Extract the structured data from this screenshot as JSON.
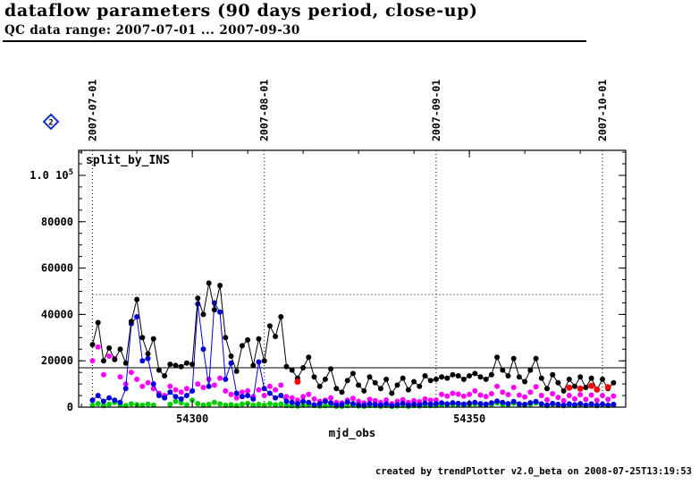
{
  "header": {
    "title": "dataflow parameters (90 days period, close-up)",
    "subtitle": "QC data range: 2007-07-01 ... 2007-09-30"
  },
  "footer": {
    "credit": "created by trendPlotter v2.0_beta on 2008-07-25T13:19:53"
  },
  "chart_data": {
    "type": "scatter",
    "title": "split_by_INS",
    "xlabel": "mjd_obs",
    "ylabel": "",
    "xlim": [
      54279.5,
      54378.2
    ],
    "ylim": [
      0,
      110800
    ],
    "grid": "dotted-month-lines",
    "legend_position": "none",
    "legend_marker": {
      "shape": "diamond",
      "color": "#1133cc",
      "label": "2"
    },
    "x_ticks_major": [
      {
        "value": 54300,
        "label": "54300"
      },
      {
        "value": 54350,
        "label": "54350"
      }
    ],
    "x_minor_step": 10,
    "y_minor_step": 5000,
    "y_ticks": [
      {
        "value": 0,
        "label": "0"
      },
      {
        "value": 20000,
        "label": "20000"
      },
      {
        "value": 40000,
        "label": "40000"
      },
      {
        "value": 60000,
        "label": "60000"
      },
      {
        "value": 80000,
        "label": "80000"
      },
      {
        "value": 100000,
        "label": "1.0 10^5"
      }
    ],
    "top_axis_dates": [
      {
        "mjd": 54282,
        "label": "2007-07-01"
      },
      {
        "mjd": 54313,
        "label": "2007-08-01"
      },
      {
        "mjd": 54344,
        "label": "2007-09-01"
      },
      {
        "mjd": 54374,
        "label": "2007-10-01"
      }
    ],
    "reference_lines": {
      "solid_y": 17000,
      "dotted_y": 48600
    },
    "series": [
      {
        "name": "series-green",
        "color": "#00cc00",
        "marker": "circle",
        "marker_size": 3,
        "line": false,
        "x_start": 54282,
        "x_step": 1,
        "y": [
          800,
          1500,
          600,
          1200,
          2000,
          900,
          700,
          1400,
          1100,
          800,
          1300,
          900,
          6000,
          4500,
          1200,
          2500,
          1800,
          1000,
          3000,
          1500,
          900,
          1200,
          2000,
          1400,
          800,
          1100,
          700,
          1300,
          1600,
          900,
          1200,
          800,
          1500,
          1000,
          1300,
          700,
          600,
          500,
          900,
          1100,
          700,
          500,
          600,
          800,
          400,
          400,
          600,
          800,
          500,
          400,
          700,
          600,
          400,
          600,
          300,
          500,
          700,
          400,
          600,
          500,
          700,
          600,
          600,
          1100,
          1000,
          1200,
          1100,
          900,
          1100,
          1400,
          1000,
          900,
          1200,
          1800,
          1300,
          1100,
          1700,
          1000,
          900,
          1300,
          1800,
          1000,
          600,
          1200,
          800,
          600,
          1000,
          700,
          1100,
          700,
          1000,
          600,
          1000,
          700,
          900
        ]
      },
      {
        "name": "series-magenta",
        "color": "#ff00ff",
        "marker": "circle",
        "marker_size": 3,
        "line": false,
        "x_start": 54282,
        "x_step": 1,
        "y": [
          20000,
          26000,
          14000,
          22000,
          21000,
          13000,
          10000,
          15000,
          12000,
          9000,
          10500,
          8000,
          6000,
          5000,
          9000,
          7500,
          6500,
          8000,
          7000,
          10000,
          8500,
          12000,
          9500,
          12500,
          7000,
          5500,
          4000,
          6500,
          7000,
          4500,
          7500,
          5000,
          9000,
          7500,
          9500,
          4500,
          4000,
          3000,
          4500,
          5500,
          3500,
          2500,
          3000,
          4000,
          2000,
          1800,
          3000,
          3800,
          2500,
          1800,
          3400,
          2800,
          2000,
          3100,
          1500,
          2500,
          3200,
          2000,
          2800,
          2300,
          3500,
          3000,
          3100,
          5500,
          4800,
          6000,
          5600,
          4700,
          5500,
          7000,
          5200,
          4600,
          5800,
          9000,
          6500,
          5400,
          8500,
          5200,
          4400,
          6500,
          8800,
          5000,
          3200,
          5800,
          4200,
          2800,
          5000,
          3600,
          5400,
          3400,
          5200,
          3000,
          5000,
          3400,
          4800
        ]
      },
      {
        "name": "series-blue",
        "color": "#0000dd",
        "marker": "circle",
        "marker_size": 3,
        "line": true,
        "x_start": 54282,
        "x_step": 1,
        "y": [
          3000,
          5000,
          2500,
          4000,
          3000,
          2000,
          8000,
          36000,
          39000,
          20000,
          21000,
          10000,
          5000,
          4000,
          6500,
          4500,
          3500,
          5000,
          7000,
          44500,
          25000,
          9000,
          45000,
          41000,
          12000,
          19000,
          6000,
          4500,
          5000,
          3500,
          19500,
          8000,
          6000,
          4000,
          5000,
          2500,
          2000,
          1500,
          2500,
          2000,
          1000,
          1500,
          2500,
          1800,
          900,
          1200,
          2200,
          1500,
          1000,
          800,
          1500,
          1200,
          900,
          1400,
          700,
          1100,
          1600,
          900,
          1300,
          1000,
          1700,
          1300,
          1500,
          1800,
          1400,
          1900,
          1600,
          1300,
          1700,
          2000,
          1500,
          1300,
          1800,
          2600,
          2000,
          1500,
          2400,
          1400,
          1200,
          1900,
          2400,
          1400,
          900,
          1600,
          1200,
          800,
          1400,
          1000,
          1500,
          900,
          1400,
          800,
          1300,
          900,
          1200
        ]
      },
      {
        "name": "series-black",
        "color": "#000000",
        "marker": "circle",
        "marker_size": 3,
        "line": true,
        "x_start": 54282,
        "x_step": 1,
        "y": [
          27000,
          36500,
          20000,
          25500,
          20500,
          25000,
          19000,
          37000,
          46500,
          30000,
          23000,
          29500,
          16000,
          13500,
          18500,
          18000,
          17500,
          19000,
          18500,
          47000,
          40000,
          53500,
          42000,
          52500,
          30000,
          22000,
          15500,
          26500,
          29000,
          18000,
          29500,
          20000,
          35000,
          30500,
          39000,
          17500,
          16000,
          12500,
          17000,
          21500,
          13000,
          9000,
          12000,
          16500,
          8000,
          6500,
          11500,
          14500,
          9500,
          7000,
          13000,
          10500,
          8000,
          12000,
          6000,
          9500,
          12500,
          7500,
          11000,
          9000,
          13500,
          11500,
          12000,
          13000,
          12500,
          14000,
          13500,
          12000,
          13500,
          14500,
          13000,
          12000,
          14000,
          21500,
          16000,
          13500,
          21000,
          13000,
          11000,
          16000,
          21000,
          12500,
          8000,
          14000,
          10500,
          7000,
          12000,
          9000,
          13000,
          8500,
          12500,
          7500,
          12000,
          8000,
          10500
        ]
      },
      {
        "name": "series-red",
        "color": "#ff0000",
        "marker": "circle",
        "marker_size": 3.5,
        "line": false,
        "x": [
          54319,
          54368,
          54370,
          54372,
          54373,
          54375
        ],
        "y": [
          11000,
          8400,
          8000,
          9200,
          7600,
          8600
        ]
      }
    ]
  }
}
